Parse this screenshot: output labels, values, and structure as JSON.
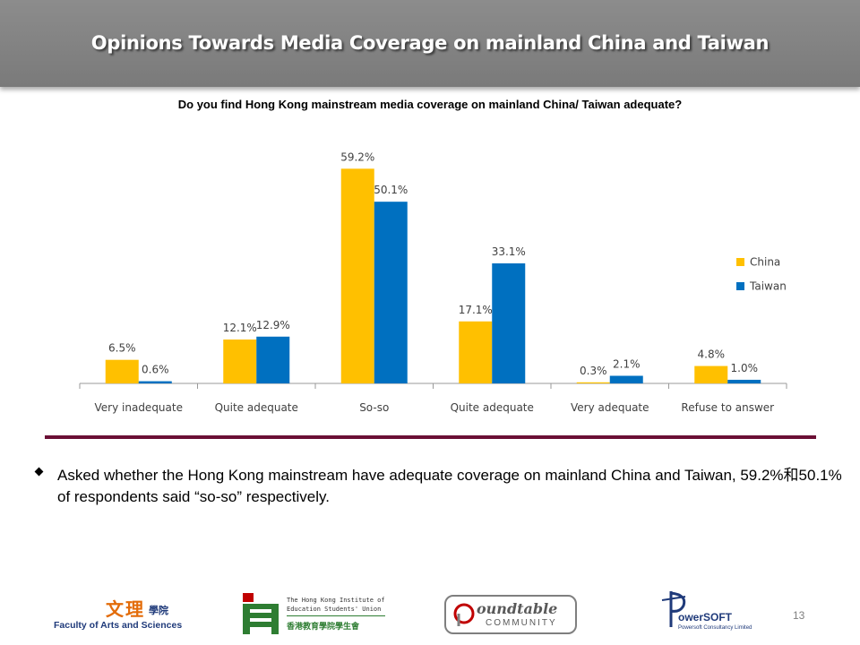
{
  "header": {
    "title": "Opinions Towards Media Coverage on mainland China and Taiwan"
  },
  "chart_data": {
    "type": "bar",
    "title": "Do you find Hong Kong mainstream media coverage on mainland China/ Taiwan adequate?",
    "categories": [
      "Very inadequate",
      "Quite adequate",
      "So-so",
      "Quite adequate",
      "Very adequate",
      "Refuse to answer"
    ],
    "series": [
      {
        "name": "China",
        "color": "#FFC000",
        "values": [
          6.5,
          12.1,
          59.2,
          17.1,
          0.3,
          4.8
        ],
        "labels": [
          "6.5%",
          "12.1%",
          "59.2%",
          "17.1%",
          "0.3%",
          "4.8%"
        ]
      },
      {
        "name": "Taiwan",
        "color": "#0070C0",
        "values": [
          0.6,
          12.9,
          50.1,
          33.1,
          2.1,
          1.0
        ],
        "labels": [
          "0.6%",
          "12.9%",
          "50.1%",
          "33.1%",
          "2.1%",
          "1.0%"
        ]
      }
    ],
    "ylim": [
      0,
      62
    ],
    "grid": false,
    "legend": "right"
  },
  "bullet": {
    "text": "Asked whether the Hong Kong mainstream have adequate coverage on mainland China and Taiwan, 59.2%和50.1% of respondents said “so-so” respectively."
  },
  "footer": {
    "logo1": {
      "chinese": "文理",
      "chinese_small": "學院",
      "english": "Faculty of Arts and Sciences"
    },
    "logo2": {
      "line1": "The Hong Kong Institute of",
      "line2": "Education Students' Union",
      "line3": "香港教育學院學生會"
    },
    "logo3": {
      "word1": "oundtable",
      "word2": "COMMUNITY"
    },
    "logo4": {
      "word": "owerSOFT",
      "sub": "Powersoft Consultancy Limited"
    },
    "page_number": "13"
  },
  "colors": {
    "china": "#FFC000",
    "taiwan": "#0070C0",
    "divider": "#6b0f35",
    "header": "#808080"
  }
}
